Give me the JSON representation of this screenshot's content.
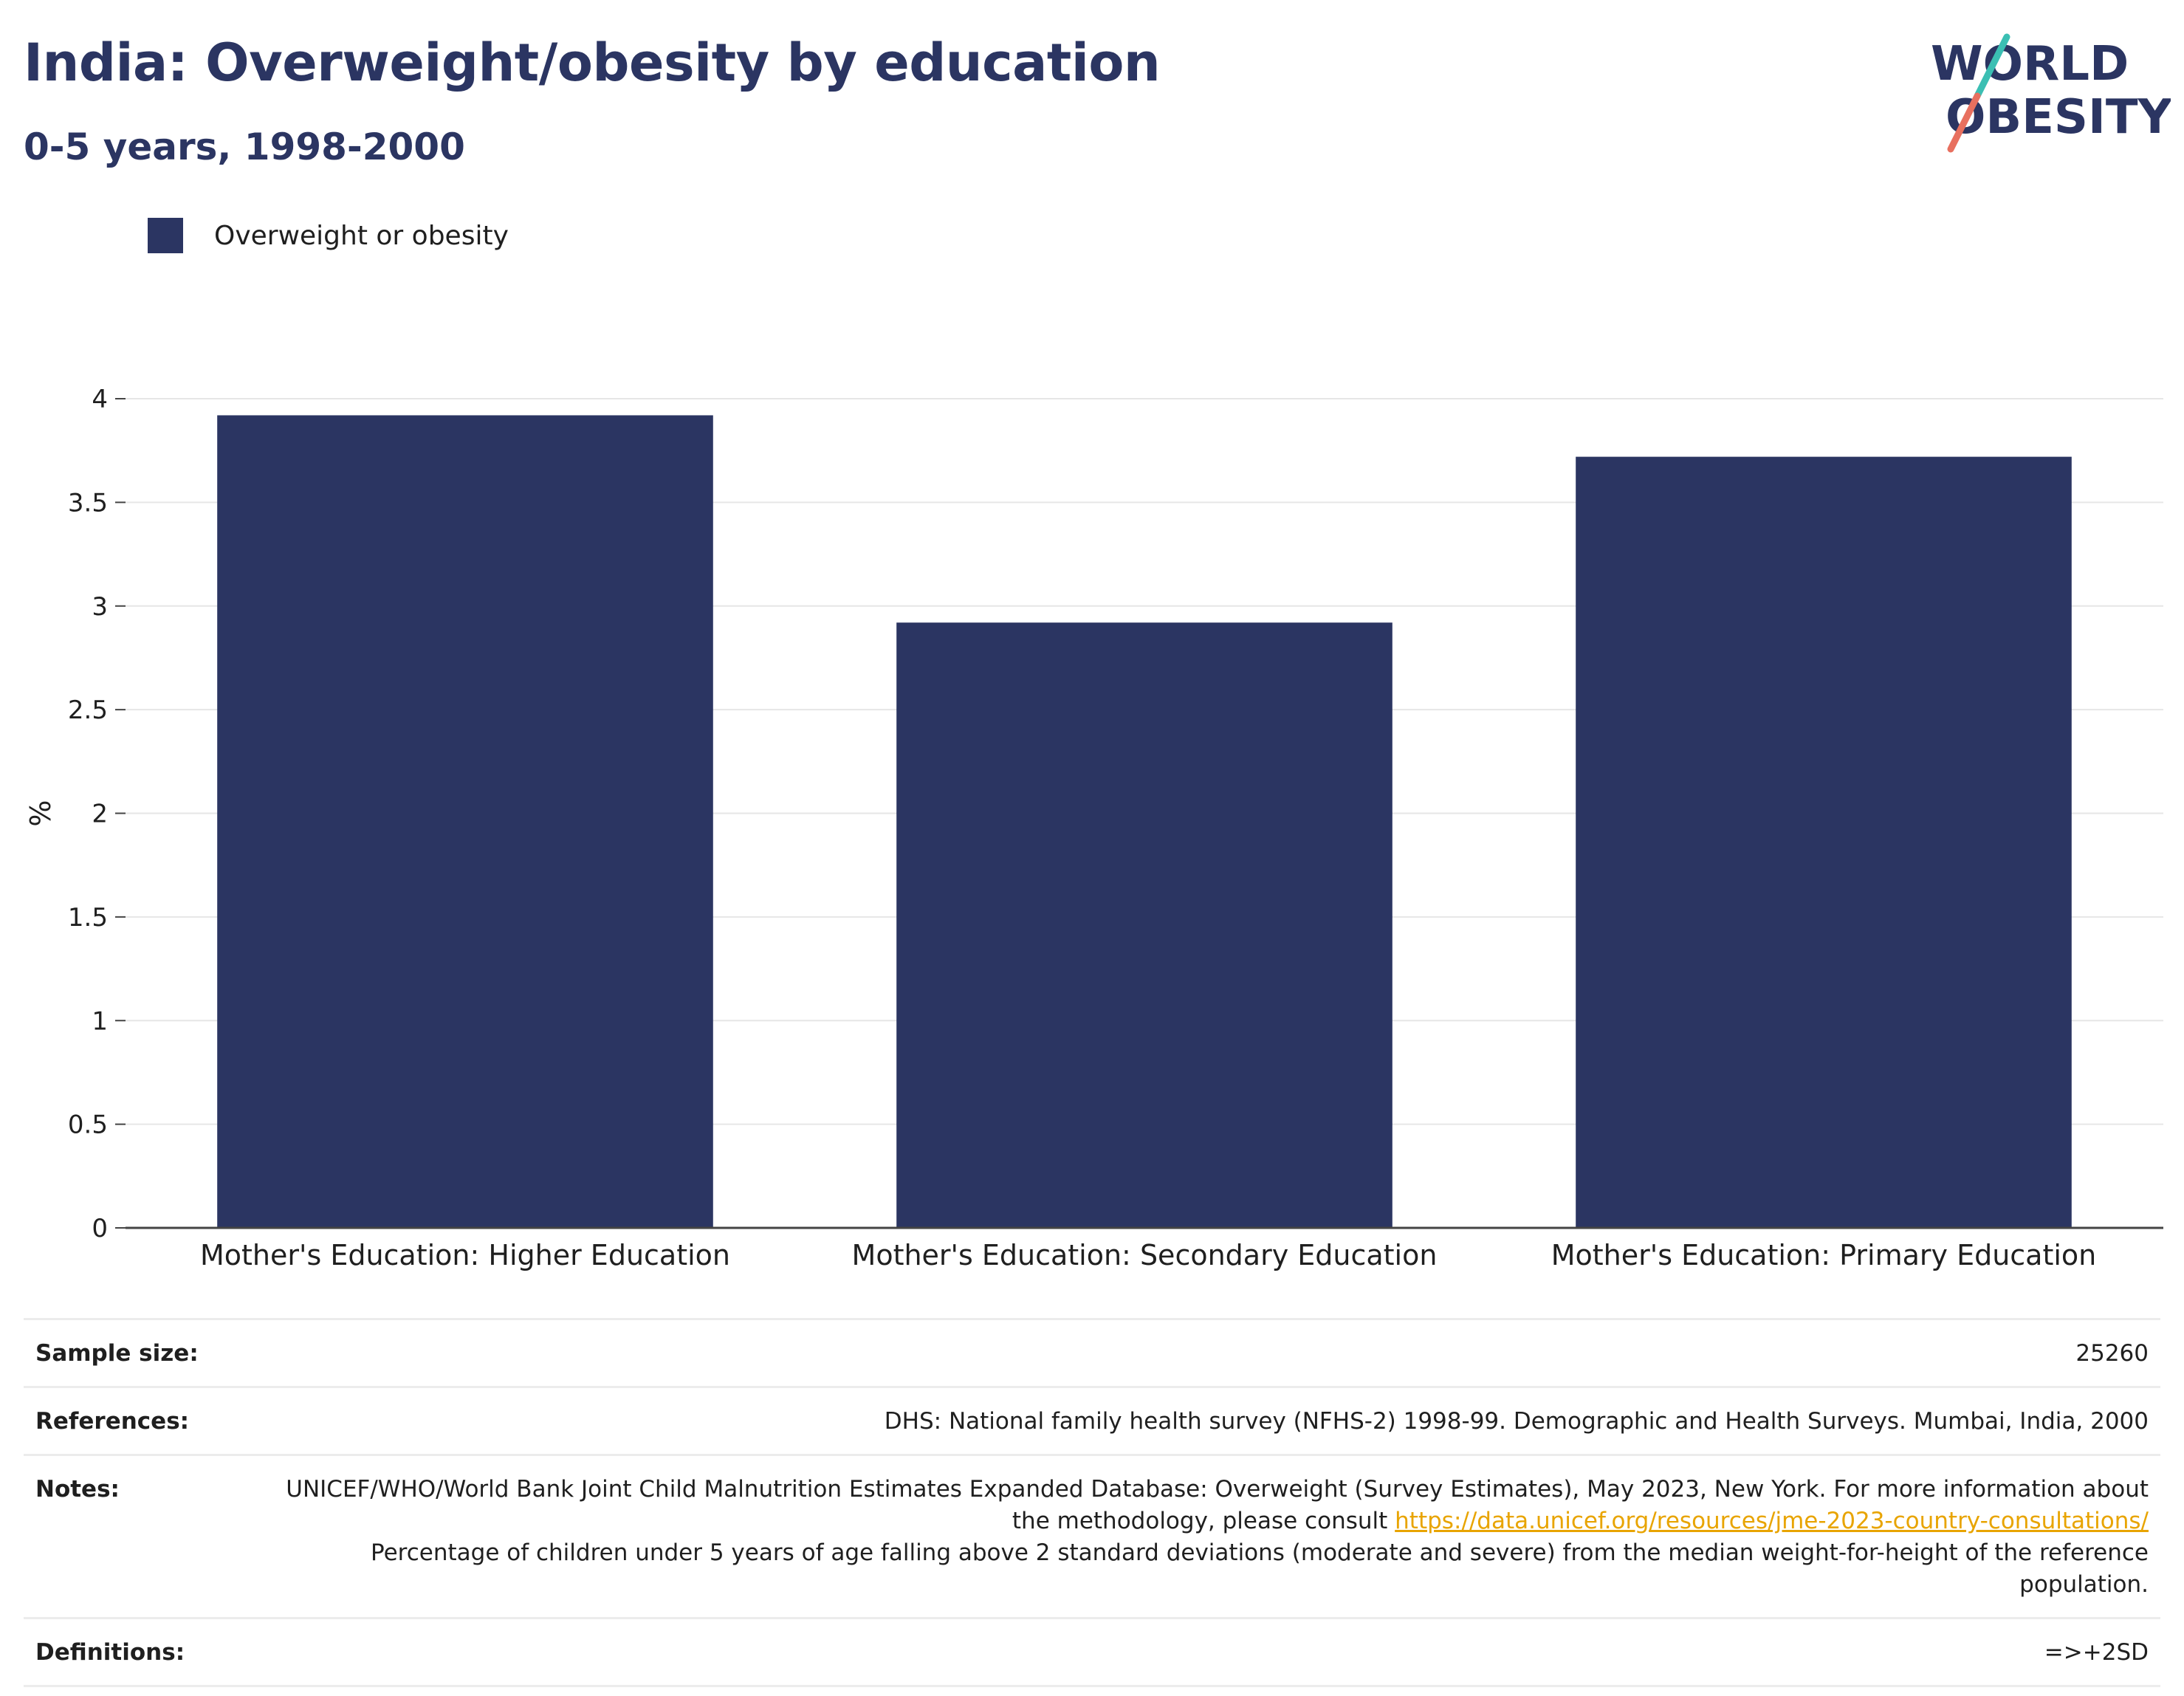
{
  "header": {
    "title": "India: Overweight/obesity by education",
    "subtitle": "0-5 years, 1998-2000"
  },
  "logo": {
    "line1": "WORLD",
    "line2": "OBESITY",
    "colors": {
      "text": "#2b3562",
      "slash_top": "#3bbfb3",
      "slash_bottom": "#e8705f"
    }
  },
  "colors": {
    "bar": "#2b3562",
    "grid": "#e6e6e6",
    "axis": "#444444",
    "link": "#e8a400"
  },
  "legend": {
    "label": "Overweight or obesity",
    "placement": "top-left"
  },
  "chart_data": {
    "type": "bar",
    "categories": [
      "Mother's Education: Higher Education",
      "Mother's Education: Secondary Education",
      "Mother's Education: Primary Education"
    ],
    "series": [
      {
        "name": "Overweight or obesity",
        "values": [
          3.92,
          2.92,
          3.72
        ]
      }
    ],
    "title": "India: Overweight/obesity by education",
    "subtitle": "0-5 years, 1998-2000",
    "xlabel": "",
    "ylabel": "%",
    "ylim": [
      0,
      4
    ],
    "yticks": [
      "0",
      "0.5",
      "1",
      "1.5",
      "2",
      "2.5",
      "3",
      "3.5",
      "4"
    ],
    "grid": true
  },
  "footer": {
    "sample_size": {
      "label": "Sample size:",
      "value": "25260"
    },
    "references": {
      "label": "References:",
      "value": "DHS: National family health survey (NFHS-2) 1998-99. Demographic and Health Surveys. Mumbai, India, 2000"
    },
    "notes": {
      "label": "Notes:",
      "text_before_link": "UNICEF/WHO/World Bank Joint Child Malnutrition Estimates Expanded Database: Overweight (Survey Estimates), May 2023, New York. For more information about the methodology, please consult ",
      "link": "https://data.unicef.org/resources/jme-2023-country-consultations/",
      "text_after_link": "Percentage of children under 5 years of age falling above 2 standard deviations (moderate and severe) from the median weight-for-height of the reference population."
    },
    "definitions": {
      "label": "Definitions:",
      "value": "=>+2SD"
    }
  }
}
